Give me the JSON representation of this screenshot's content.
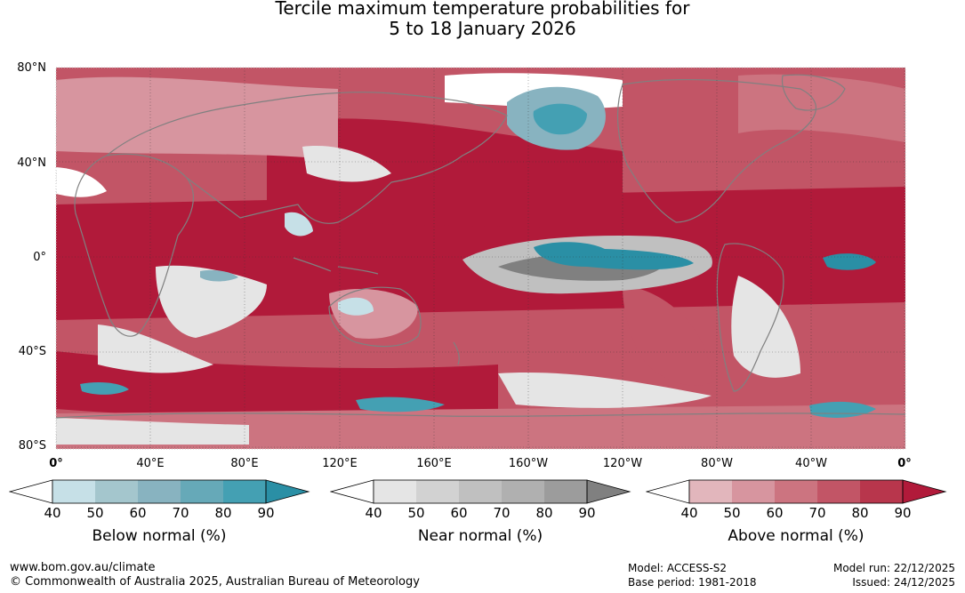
{
  "title": {
    "line1": "Tercile maximum temperature probabilities for",
    "line2": "5 to 18 January 2026"
  },
  "lat_labels": [
    "80°N",
    "40°N",
    "0°",
    "40°S",
    "80°S"
  ],
  "lon_labels": [
    "0°",
    "40°E",
    "80°E",
    "120°E",
    "160°E",
    "160°W",
    "120°W",
    "80°W",
    "40°W",
    "0°"
  ],
  "colorbars": [
    {
      "title": "Below normal (%)",
      "ticks": [
        "40",
        "50",
        "60",
        "70",
        "80",
        "90"
      ],
      "colors": [
        "#ffffff",
        "#c6e0e7",
        "#a4c6cd",
        "#88b3c0",
        "#66a9b8",
        "#44a0b3",
        "#2a8fa5"
      ]
    },
    {
      "title": "Near normal (%)",
      "ticks": [
        "40",
        "50",
        "60",
        "70",
        "80",
        "90"
      ],
      "colors": [
        "#ffffff",
        "#e5e5e5",
        "#d2d2d2",
        "#c0c0c0",
        "#b0b0b0",
        "#9c9c9c",
        "#808080"
      ]
    },
    {
      "title": "Above normal (%)",
      "ticks": [
        "40",
        "50",
        "60",
        "70",
        "80",
        "90"
      ],
      "colors": [
        "#ffffff",
        "#e2b6bc",
        "#d7959f",
        "#cc7480",
        "#c25566",
        "#b8364c",
        "#b11a3a"
      ]
    }
  ],
  "map_colors": {
    "above": [
      "#e2b6bc",
      "#d7959f",
      "#cc7480",
      "#c25566",
      "#b8364c",
      "#b11a3a"
    ],
    "near": [
      "#e5e5e5",
      "#c0c0c0",
      "#9c9c9c",
      "#808080"
    ],
    "below": [
      "#c6e0e7",
      "#88b3c0",
      "#44a0b3",
      "#2a8fa5"
    ],
    "coast": "#808080"
  },
  "footer": {
    "website": "www.bom.gov.au/climate",
    "copyright": "© Commonwealth of Australia 2025, Australian Bureau of Meteorology",
    "model": "Model: ACCESS-S2",
    "base_period": "Base period: 1981-2018",
    "model_run": "Model run: 22/12/2025",
    "issued": "Issued: 24/12/2025"
  }
}
